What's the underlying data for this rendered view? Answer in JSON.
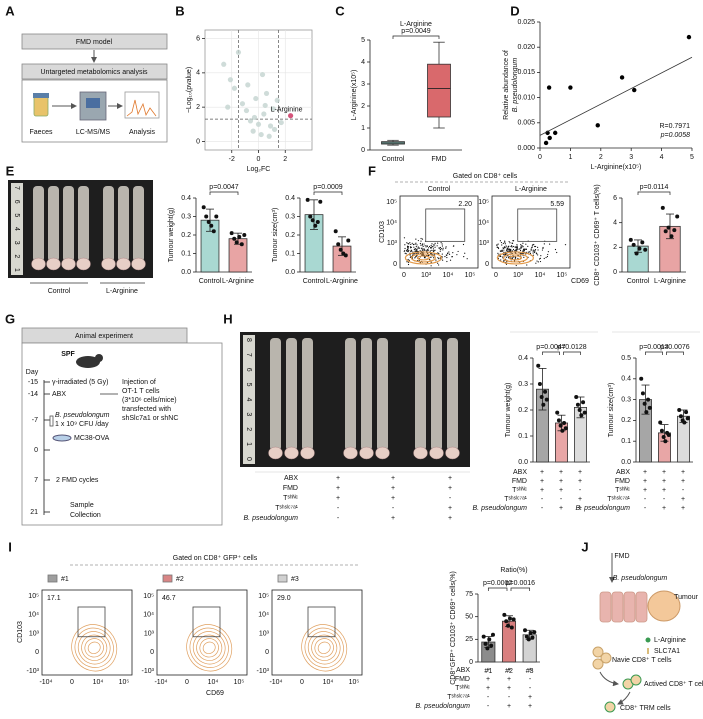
{
  "A": {
    "label": "A",
    "box1": "FMD model",
    "box2": "Untargeted metabolomics analysis",
    "steps": [
      "Faeces",
      "LC-MS/MS",
      "Analysis"
    ]
  },
  "B": {
    "label": "B",
    "chart": {
      "type": "scatter",
      "xlabel": "Log₂FC",
      "ylabel": "−Log₁₀(pvalue)",
      "xlim": [
        -4,
        4
      ],
      "ylim": [
        -0.5,
        6.5
      ],
      "xticks": [
        -2,
        0,
        2
      ],
      "yticks": [
        0,
        2,
        4,
        6
      ],
      "threshold_x": [
        -1.5,
        1.5
      ],
      "threshold_y": 1.3,
      "color": "#c3d3cf",
      "x": [
        -2.6,
        -2.1,
        -1.8,
        -1.2,
        -0.9,
        -0.6,
        -0.4,
        -0.2,
        0,
        0.2,
        0.4,
        0.6,
        0.9,
        1.1,
        1.4,
        1.7,
        -1.5,
        -0.8,
        0.3,
        0.8,
        -2.3,
        1.2,
        -0.3,
        0.5
      ],
      "y": [
        4.5,
        3.6,
        3.1,
        2.2,
        1.8,
        1.2,
        0.6,
        2.5,
        1.0,
        0.4,
        1.6,
        2.8,
        0.9,
        1.9,
        2.4,
        1.1,
        5.2,
        3.3,
        3.9,
        0.3,
        2.0,
        0.7,
        1.4,
        2.1
      ],
      "highlight": {
        "label": "L-Arginine",
        "x": 2.4,
        "y": 1.5,
        "color": "#d4547a"
      }
    }
  },
  "C": {
    "label": "C",
    "chart": {
      "type": "box",
      "title": "L-Arginine",
      "ylabel": "L-Arginine(x10⁵)",
      "categories": [
        "Control",
        "FMD"
      ],
      "colors": [
        "#8fc9c0",
        "#d9696c"
      ],
      "min": [
        0.22,
        1.0
      ],
      "q1": [
        0.27,
        1.5
      ],
      "median": [
        0.32,
        2.8
      ],
      "q3": [
        0.38,
        3.9
      ],
      "max": [
        0.44,
        4.9
      ],
      "ylim": [
        0,
        5
      ],
      "yticks": [
        0,
        1,
        2,
        3,
        4,
        5
      ],
      "bracket": "p=0.0049"
    }
  },
  "D": {
    "label": "D",
    "chart": {
      "type": "scatter",
      "xlabel": "L-Arginine(x10⁵)",
      "ylabel": [
        "Relative abundance of",
        "B. pseudolongum"
      ],
      "xlim": [
        0,
        5
      ],
      "ylim": [
        0,
        0.025
      ],
      "xticks": [
        0,
        1,
        2,
        3,
        4,
        5
      ],
      "yticks": [
        {
          "value": 0,
          "label": "0.000"
        },
        0.005,
        {
          "value": 0.01,
          "label": "0.010"
        },
        0.015,
        {
          "value": 0.02,
          "label": "0.020"
        },
        0.025
      ],
      "x": [
        0.2,
        0.25,
        0.3,
        0.32,
        0.5,
        1.0,
        1.9,
        2.7,
        3.1,
        4.9
      ],
      "y": [
        0.001,
        0.003,
        0.012,
        0.002,
        0.003,
        0.012,
        0.0045,
        0.014,
        0.0115,
        0.022
      ],
      "color": "#000000",
      "trendline": {
        "x": [
          0,
          5
        ],
        "y": [
          0.0025,
          0.018
        ]
      },
      "stats": [
        "R=0.7971",
        "p=0.0058"
      ]
    }
  },
  "E": {
    "label": "E",
    "photo": {
      "ruler": [
        "7",
        "6",
        "5",
        "4",
        "3",
        "2",
        "1"
      ],
      "groups": [
        "Control",
        "L-Arginine"
      ]
    },
    "charts": [
      {
        "type": "bar",
        "ylabel": "Tumour weight(g)",
        "categories": [
          "Control",
          "L-Arginine"
        ],
        "values": [
          0.28,
          0.18
        ],
        "errors": [
          0.06,
          0.03
        ],
        "points": [
          [
            0.35,
            0.3,
            0.27,
            0.25,
            0.22,
            0.3
          ],
          [
            0.21,
            0.18,
            0.16,
            0.19,
            0.15,
            0.2
          ]
        ],
        "colors": [
          "#a9d8d2",
          "#e8a4a4"
        ],
        "ylim": [
          0,
          0.4
        ],
        "yticks": [
          {
            "value": 0,
            "label": "0.0"
          },
          0.1,
          0.2,
          0.3,
          0.4
        ],
        "brackets": [
          {
            "text": "p=0.0047",
            "span": [
              0,
              1
            ]
          }
        ]
      },
      {
        "type": "bar",
        "ylabel": "Tumour size(cm³)",
        "categories": [
          "Control",
          "L-Arginine"
        ],
        "values": [
          0.31,
          0.14
        ],
        "errors": [
          0.08,
          0.05
        ],
        "points": [
          [
            0.39,
            0.3,
            0.28,
            0.25,
            0.27,
            0.38
          ],
          [
            0.22,
            0.15,
            0.12,
            0.1,
            0.09,
            0.17
          ]
        ],
        "colors": [
          "#a9d8d2",
          "#e8a4a4"
        ],
        "ylim": [
          0,
          0.4
        ],
        "yticks": [
          {
            "value": 0,
            "label": "0.0"
          },
          0.1,
          0.2,
          0.3,
          0.4
        ],
        "brackets": [
          {
            "text": "p=0.0009",
            "span": [
              0,
              1
            ]
          }
        ]
      }
    ]
  },
  "F": {
    "label": "F",
    "gate_title": "Gated on CD8⁺ cells",
    "plots": [
      {
        "name": "Control",
        "percent": "2.20"
      },
      {
        "name": "L-Arginine",
        "percent": "5.59"
      }
    ],
    "xaxis": "CD69",
    "yaxis": "CD103",
    "xticks": [
      "0",
      "10³",
      "10⁴",
      "10⁵"
    ],
    "yticks": [
      "0",
      "10³",
      "10⁴",
      "10⁵"
    ],
    "chart": {
      "type": "bar",
      "ylabel": "CD8⁺ CD103⁺ CD69⁺ T cells(%)",
      "categories": [
        "Control",
        "L-Arginine"
      ],
      "values": [
        2.1,
        3.7
      ],
      "errors": [
        0.5,
        1.0
      ],
      "points": [
        [
          2.6,
          2.2,
          1.5,
          1.9,
          2.4,
          1.8
        ],
        [
          5.2,
          3.3,
          3.6,
          2.9,
          3.4,
          4.5
        ]
      ],
      "colors": [
        "#a9d8d2",
        "#e8a4a4"
      ],
      "ylim": [
        0,
        6
      ],
      "yticks": [
        0,
        2,
        4,
        6
      ],
      "brackets": [
        {
          "text": "p=0.0114",
          "span": [
            0,
            1
          ]
        }
      ]
    }
  },
  "G": {
    "label": "G",
    "header": "Animal experiment",
    "animal": "SPF",
    "day_label": "Day",
    "days": [
      "-15",
      "-14",
      "-7",
      "0",
      "7",
      "21"
    ],
    "events": [
      "γ-irradiated (5 Gy)",
      "ABX",
      "B. pseudolongum",
      "1 x 10⁹ CFU /day",
      "MC38-OVA",
      "2 FMD cycles",
      "Sample",
      "Collection"
    ],
    "injection": [
      "Injection of",
      "OT-1 T cells",
      "(3*10⁶ cells/mice)",
      "transfected with",
      "shSlc7a1 or shNC"
    ]
  },
  "H": {
    "label": "H",
    "photo": {
      "ruler": [
        "8",
        "7",
        "6",
        "5",
        "4",
        "3",
        "2",
        "1",
        "0"
      ]
    },
    "table": {
      "rows": [
        "ABX",
        "FMD",
        "Tˢʰᴺᶜ",
        "Tˢʰˢˡᶜ⁷ᵃ¹",
        "B. pseudolongum"
      ],
      "cells": [
        [
          "+",
          "+",
          "+"
        ],
        [
          "+",
          "+",
          "+"
        ],
        [
          "+",
          "+",
          "-"
        ],
        [
          "-",
          "-",
          "+"
        ],
        [
          "-",
          "+",
          "+"
        ]
      ]
    },
    "charts": [
      {
        "type": "bar",
        "ylabel": "Tumour weight(g)",
        "values": [
          0.28,
          0.15,
          0.21
        ],
        "errors": [
          0.08,
          0.03,
          0.04
        ],
        "points": [
          [
            0.37,
            0.3,
            0.25,
            0.22,
            0.27,
            0.24
          ],
          [
            0.19,
            0.16,
            0.14,
            0.12,
            0.15,
            0.13
          ],
          [
            0.25,
            0.22,
            0.2,
            0.18,
            0.23,
            0.19
          ]
        ],
        "colors": [
          "#a6a6a6",
          "#e8a6a6",
          "#dcdcdc"
        ],
        "ylim": [
          0,
          0.4
        ],
        "yticks": [
          {
            "value": 0,
            "label": "0.0"
          },
          0.1,
          0.2,
          0.3,
          0.4
        ],
        "brackets": [
          {
            "text": "p=0.0047",
            "span": [
              0,
              1
            ]
          },
          {
            "text": "p=0.0128",
            "span": [
              1,
              2
            ]
          }
        ]
      },
      {
        "type": "bar",
        "ylabel": "Tumour size(cm³)",
        "values": [
          0.3,
          0.14,
          0.22
        ],
        "errors": [
          0.07,
          0.04,
          0.03
        ],
        "points": [
          [
            0.4,
            0.33,
            0.28,
            0.24,
            0.3,
            0.26
          ],
          [
            0.19,
            0.15,
            0.12,
            0.1,
            0.14,
            0.13
          ],
          [
            0.25,
            0.22,
            0.2,
            0.19,
            0.24,
            0.21
          ]
        ],
        "colors": [
          "#a6a6a6",
          "#e8a6a6",
          "#dcdcdc"
        ],
        "ylim": [
          0,
          0.5
        ],
        "yticks": [
          {
            "value": 0,
            "label": "0.0"
          },
          0.1,
          0.2,
          0.3,
          0.4,
          0.5
        ],
        "brackets": [
          {
            "text": "p=0.0013",
            "span": [
              0,
              1
            ]
          },
          {
            "text": "p=0.0076",
            "span": [
              1,
              2
            ]
          }
        ]
      }
    ]
  },
  "I": {
    "label": "I",
    "gate_title": "Gated on CD8⁺ GFP⁺ cells",
    "plots": [
      {
        "name": "#1",
        "percent": "17.1",
        "color": "#9e9e9e"
      },
      {
        "name": "#2",
        "percent": "46.7",
        "color": "#d98686"
      },
      {
        "name": "#3",
        "percent": "29.0",
        "color": "#d0d0d0"
      }
    ],
    "xaxis": "CD69",
    "yaxis": "CD103",
    "xticks": [
      "-10⁴",
      "0",
      "10⁴",
      "10⁵"
    ],
    "yticks": [
      "-10³",
      "0",
      "10³",
      "10⁴",
      "10⁵"
    ],
    "chart": {
      "type": "bar",
      "title": "Ratio(%)",
      "ylabel": "CD8⁺GFP⁺ CD103⁺ CD69⁺ cells(%)",
      "categories": [
        "#1",
        "#2",
        "#3"
      ],
      "values": [
        22,
        45,
        30
      ],
      "errors": [
        6,
        6,
        5
      ],
      "points": [
        [
          28,
          20,
          15,
          25,
          18,
          30
        ],
        [
          52,
          45,
          40,
          48,
          38,
          47
        ],
        [
          35,
          28,
          25,
          32,
          27,
          33
        ]
      ],
      "colors": [
        "#8c8c8c",
        "#d97f7f",
        "#d3d3d3"
      ],
      "ylim": [
        0,
        75
      ],
      "yticks": [
        0,
        25,
        50,
        75
      ],
      "brackets": [
        {
          "text": "p=0.0002",
          "span": [
            0,
            1
          ]
        },
        {
          "text": "p=0.0016",
          "span": [
            1,
            2
          ]
        }
      ]
    },
    "table": {
      "rows": [
        "ABX",
        "FMD",
        "Tˢʰᴺᶜ",
        "Tˢʰˢˡᶜ⁷ᵃ¹",
        "B. pseudolongum"
      ],
      "cells": [
        [
          "+",
          "+",
          "+"
        ],
        [
          "+",
          "+",
          "-"
        ],
        [
          "+",
          "+",
          "-"
        ],
        [
          "-",
          "-",
          "+"
        ],
        [
          "-",
          "+",
          "+"
        ]
      ]
    }
  },
  "J": {
    "label": "J",
    "texts": {
      "fmd": "FMD",
      "bacteria": "B. pseudolongum",
      "tumour": "Tumour",
      "arginine": "L-Arginine",
      "transporter": "SLC7A1",
      "naive": "Navie CD8⁺ T cells",
      "active": "Actived CD8⁺ T cells",
      "trm": "CD8⁺ TRM cells"
    }
  }
}
